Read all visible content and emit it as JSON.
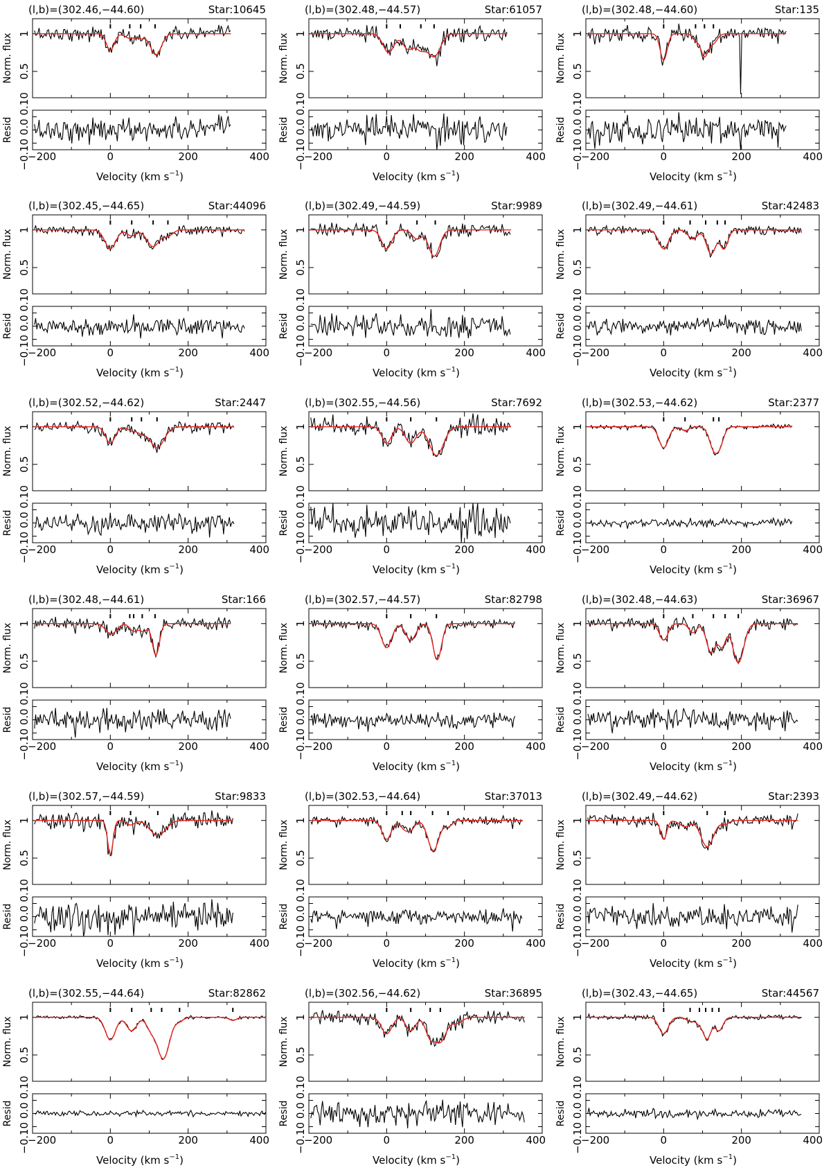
{
  "chart_data": {
    "type": "line",
    "layout": "grid of 6 rows x 3 columns; each panel = normalized-flux spectrum with model fit (top) and residuals (bottom)",
    "x_axis": {
      "label": "Velocity (km s",
      "label_superscript": "−1",
      "label_close": ")",
      "range": [
        -200,
        400
      ],
      "ticks": [
        -200,
        0,
        200,
        400
      ],
      "tick_labels": [
        "−200",
        "0",
        "200",
        "400"
      ]
    },
    "flux_axis": {
      "label": "Norm. flux",
      "range": [
        0.15,
        1.2
      ],
      "ticks": [
        1,
        0.5
      ],
      "tick_labels": [
        "1",
        "0.5"
      ]
    },
    "resid_axis": {
      "label": "Resid",
      "range": [
        -0.15,
        0.15
      ],
      "tick_labels": [
        "−0.10",
        "0.0",
        "0.10"
      ]
    },
    "series_colors": {
      "data": "#000000",
      "fit": "#e8231e"
    },
    "panels": [
      {
        "coords": "(l,b)=(302.46,−44.60)",
        "star": "Star:10645",
        "xmax": 310,
        "noise": 0.045,
        "markers": [
          0,
          50,
          78,
          115
        ],
        "components": [
          {
            "v": 0,
            "depth": 0.22,
            "width": 10
          },
          {
            "v": 50,
            "depth": 0.06,
            "width": 12
          },
          {
            "v": 78,
            "depth": 0.06,
            "width": 10
          },
          {
            "v": 117,
            "depth": 0.28,
            "width": 14
          }
        ]
      },
      {
        "coords": "(l,b)=(302.48,−44.57)",
        "star": "Star:61057",
        "xmax": 310,
        "noise": 0.05,
        "markers": [
          0,
          35,
          88,
          122
        ],
        "components": [
          {
            "v": 5,
            "depth": 0.25,
            "width": 14
          },
          {
            "v": 55,
            "depth": 0.2,
            "width": 14
          },
          {
            "v": 88,
            "depth": 0.2,
            "width": 14
          },
          {
            "v": 122,
            "depth": 0.3,
            "width": 16
          }
        ]
      },
      {
        "coords": "(l,b)=(302.48,−44.60)",
        "star": "Star:135",
        "xmax": 315,
        "noise": 0.05,
        "markers": [
          0,
          82,
          105,
          128
        ],
        "spike": {
          "v": 198,
          "f": 0.2
        },
        "components": [
          {
            "v": 0,
            "depth": 0.35,
            "width": 9
          },
          {
            "v": 82,
            "depth": 0.08,
            "width": 8
          },
          {
            "v": 105,
            "depth": 0.3,
            "width": 10
          },
          {
            "v": 128,
            "depth": 0.12,
            "width": 10
          }
        ]
      },
      {
        "coords": "(l,b)=(302.45,−44.65)",
        "star": "Star:44096",
        "xmax": 345,
        "noise": 0.035,
        "markers": [
          0,
          55,
          110,
          148
        ],
        "components": [
          {
            "v": 0,
            "depth": 0.25,
            "width": 14
          },
          {
            "v": 55,
            "depth": 0.08,
            "width": 12
          },
          {
            "v": 110,
            "depth": 0.22,
            "width": 16
          },
          {
            "v": 148,
            "depth": 0.08,
            "width": 12
          }
        ]
      },
      {
        "coords": "(l,b)=(302.49,−44.59)",
        "star": "Star:9989",
        "xmax": 320,
        "noise": 0.045,
        "markers": [
          0,
          78,
          125
        ],
        "components": [
          {
            "v": 0,
            "depth": 0.25,
            "width": 13
          },
          {
            "v": 78,
            "depth": 0.12,
            "width": 12
          },
          {
            "v": 122,
            "depth": 0.35,
            "width": 14
          }
        ]
      },
      {
        "coords": "(l,b)=(302.49,−44.61)",
        "star": "Star:42483",
        "xmax": 355,
        "noise": 0.03,
        "markers": [
          0,
          68,
          108,
          138,
          158
        ],
        "components": [
          {
            "v": 0,
            "depth": 0.25,
            "width": 13
          },
          {
            "v": 75,
            "depth": 0.12,
            "width": 12
          },
          {
            "v": 122,
            "depth": 0.32,
            "width": 12
          },
          {
            "v": 155,
            "depth": 0.25,
            "width": 10
          }
        ]
      },
      {
        "coords": "(l,b)=(302.52,−44.62)",
        "star": "Star:2447",
        "xmax": 318,
        "noise": 0.035,
        "markers": [
          0,
          55,
          80,
          120
        ],
        "components": [
          {
            "v": 0,
            "depth": 0.22,
            "width": 12
          },
          {
            "v": 55,
            "depth": 0.05,
            "width": 10
          },
          {
            "v": 80,
            "depth": 0.08,
            "width": 12
          },
          {
            "v": 120,
            "depth": 0.28,
            "width": 18
          }
        ]
      },
      {
        "coords": "(l,b)=(302.55,−44.56)",
        "star": "Star:7692",
        "xmax": 320,
        "noise": 0.06,
        "markers": [
          0,
          62,
          128
        ],
        "components": [
          {
            "v": 0,
            "depth": 0.22,
            "width": 12
          },
          {
            "v": 62,
            "depth": 0.22,
            "width": 14
          },
          {
            "v": 128,
            "depth": 0.38,
            "width": 18
          }
        ]
      },
      {
        "coords": "(l,b)=(302.53,−44.62)",
        "star": "Star:2377",
        "xmax": 330,
        "noise": 0.015,
        "markers": [
          0,
          55,
          128,
          142
        ],
        "components": [
          {
            "v": 0,
            "depth": 0.28,
            "width": 12
          },
          {
            "v": 55,
            "depth": 0.05,
            "width": 10
          },
          {
            "v": 130,
            "depth": 0.3,
            "width": 12
          },
          {
            "v": 145,
            "depth": 0.18,
            "width": 10
          }
        ]
      },
      {
        "coords": "(l,b)=(302.48,−44.61)",
        "star": "Star:166",
        "xmax": 310,
        "noise": 0.04,
        "markers": [
          0,
          50,
          60,
          82,
          115
        ],
        "components": [
          {
            "v": 2,
            "depth": 0.14,
            "width": 14
          },
          {
            "v": 60,
            "depth": 0.1,
            "width": 10
          },
          {
            "v": 85,
            "depth": 0.1,
            "width": 10
          },
          {
            "v": 117,
            "depth": 0.42,
            "width": 9
          }
        ]
      },
      {
        "coords": "(l,b)=(302.57,−44.57)",
        "star": "Star:82798",
        "xmax": 330,
        "noise": 0.03,
        "markers": [
          0,
          62,
          128
        ],
        "components": [
          {
            "v": 0,
            "depth": 0.32,
            "width": 13
          },
          {
            "v": 62,
            "depth": 0.22,
            "width": 13
          },
          {
            "v": 130,
            "depth": 0.48,
            "width": 11
          }
        ]
      },
      {
        "coords": "(l,b)=(302.48,−44.63)",
        "star": "Star:36967",
        "xmax": 345,
        "noise": 0.04,
        "markers": [
          0,
          75,
          128,
          158,
          192
        ],
        "components": [
          {
            "v": 0,
            "depth": 0.22,
            "width": 11
          },
          {
            "v": 75,
            "depth": 0.12,
            "width": 10
          },
          {
            "v": 122,
            "depth": 0.38,
            "width": 12
          },
          {
            "v": 150,
            "depth": 0.3,
            "width": 10
          },
          {
            "v": 192,
            "depth": 0.52,
            "width": 14
          }
        ]
      },
      {
        "coords": "(l,b)=(302.57,−44.59)",
        "star": "Star:9833",
        "xmax": 315,
        "noise": 0.055,
        "markers": [
          0,
          52,
          122
        ],
        "components": [
          {
            "v": 0,
            "depth": 0.45,
            "width": 7
          },
          {
            "v": 52,
            "depth": 0.06,
            "width": 10
          },
          {
            "v": 122,
            "depth": 0.2,
            "width": 20
          }
        ]
      },
      {
        "coords": "(l,b)=(302.53,−44.64)",
        "star": "Star:37013",
        "xmax": 350,
        "noise": 0.03,
        "markers": [
          0,
          40,
          62,
          118,
          158
        ],
        "components": [
          {
            "v": 0,
            "depth": 0.25,
            "width": 12
          },
          {
            "v": 45,
            "depth": 0.1,
            "width": 10
          },
          {
            "v": 62,
            "depth": 0.12,
            "width": 10
          },
          {
            "v": 120,
            "depth": 0.4,
            "width": 14
          },
          {
            "v": 158,
            "depth": 0.08,
            "width": 10
          }
        ]
      },
      {
        "coords": "(l,b)=(302.49,−44.62)",
        "star": "Star:2393",
        "xmax": 345,
        "noise": 0.04,
        "markers": [
          0,
          112,
          158
        ],
        "components": [
          {
            "v": 0,
            "depth": 0.25,
            "width": 8
          },
          {
            "v": 55,
            "depth": 0.08,
            "width": 14
          },
          {
            "v": 112,
            "depth": 0.35,
            "width": 16
          },
          {
            "v": 158,
            "depth": 0.05,
            "width": 10
          }
        ]
      },
      {
        "coords": "(l,b)=(302.55,−44.64)",
        "star": "Star:82862",
        "xmax": 400,
        "noise": 0.01,
        "markers": [
          0,
          55,
          105,
          132,
          178,
          315
        ],
        "components": [
          {
            "v": 0,
            "depth": 0.3,
            "width": 13
          },
          {
            "v": 55,
            "depth": 0.18,
            "width": 13
          },
          {
            "v": 105,
            "depth": 0.15,
            "width": 12
          },
          {
            "v": 136,
            "depth": 0.55,
            "width": 16
          },
          {
            "v": 178,
            "depth": 0.05,
            "width": 10
          },
          {
            "v": 315,
            "depth": 0.04,
            "width": 10
          }
        ]
      },
      {
        "coords": "(l,b)=(302.56,−44.62)",
        "star": "Star:36895",
        "xmax": 355,
        "noise": 0.045,
        "markers": [
          0,
          62,
          112,
          138
        ],
        "components": [
          {
            "v": 0,
            "depth": 0.22,
            "width": 13
          },
          {
            "v": 62,
            "depth": 0.18,
            "width": 12
          },
          {
            "v": 112,
            "depth": 0.25,
            "width": 12
          },
          {
            "v": 138,
            "depth": 0.32,
            "width": 15
          },
          {
            "v": 180,
            "depth": 0.08,
            "width": 14
          }
        ]
      },
      {
        "coords": "(l,b)=(302.43,−44.65)",
        "star": "Star:44567",
        "xmax": 355,
        "noise": 0.015,
        "markers": [
          0,
          68,
          92,
          108,
          125,
          142
        ],
        "components": [
          {
            "v": 0,
            "depth": 0.22,
            "width": 12
          },
          {
            "v": 68,
            "depth": 0.05,
            "width": 10
          },
          {
            "v": 92,
            "depth": 0.08,
            "width": 10
          },
          {
            "v": 112,
            "depth": 0.28,
            "width": 10
          },
          {
            "v": 142,
            "depth": 0.18,
            "width": 10
          }
        ]
      }
    ]
  }
}
